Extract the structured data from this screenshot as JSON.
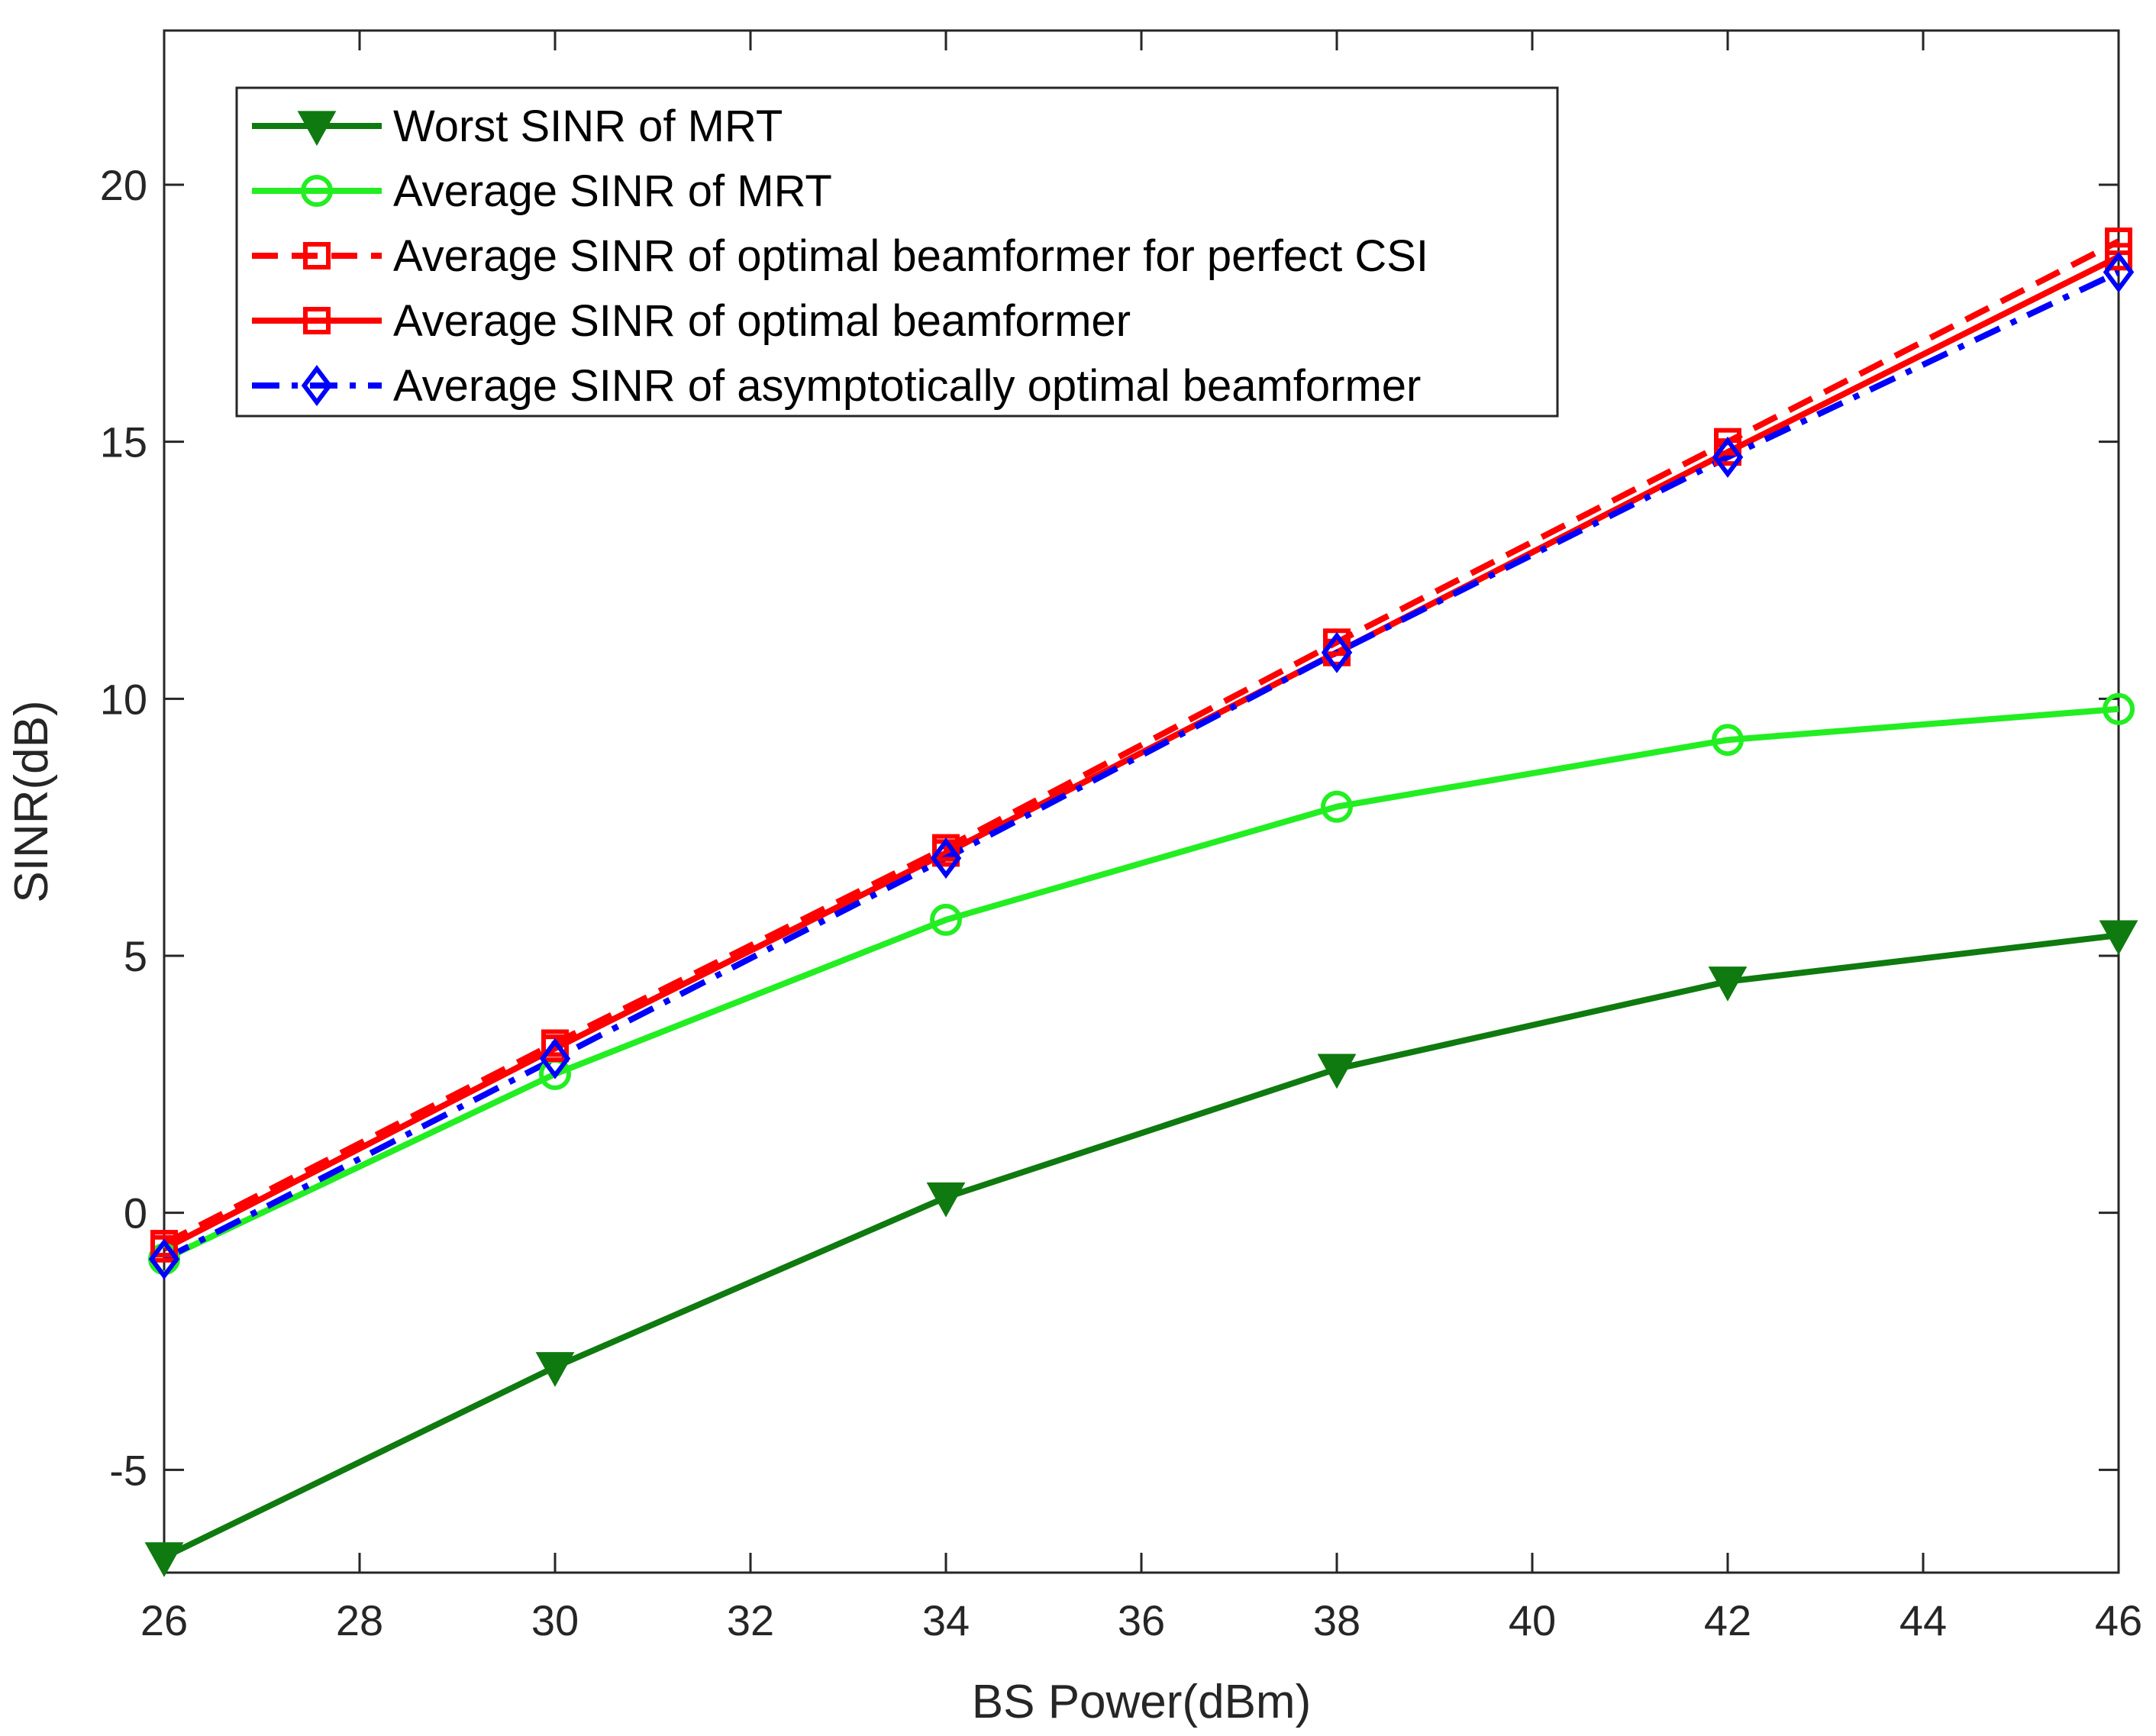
{
  "chart_data": {
    "type": "line",
    "title": "",
    "xlabel": "BS Power(dBm)",
    "ylabel": "SINR(dB)",
    "xlim": [
      26,
      46
    ],
    "ylim": [
      -7,
      23
    ],
    "xticks": [
      26,
      28,
      30,
      32,
      34,
      36,
      38,
      40,
      42,
      44,
      46
    ],
    "yticks": [
      -5,
      0,
      5,
      10,
      15,
      20
    ],
    "ytick_labels": [
      "-5",
      "0",
      "5",
      "10",
      "15",
      "20"
    ],
    "grid": false,
    "legend_position": "top-left",
    "series": [
      {
        "name": "Worst SINR of MRT",
        "color": "#0f7a0f",
        "style": "solid",
        "marker": "triangle-down",
        "x": [
          26,
          30,
          34,
          38,
          42,
          46
        ],
        "y": [
          -6.7,
          -3.0,
          0.3,
          2.8,
          4.5,
          5.4
        ]
      },
      {
        "name": "Average SINR of MRT",
        "color": "#22ee22",
        "style": "solid",
        "marker": "circle",
        "x": [
          26,
          30,
          34,
          38,
          42,
          46
        ],
        "y": [
          -0.9,
          2.7,
          5.7,
          7.9,
          9.2,
          9.8
        ]
      },
      {
        "name": "Average SINR of optimal beamformer for perfect CSI",
        "color": "#ff0000",
        "style": "dashed",
        "marker": "square",
        "x": [
          26,
          30,
          34,
          38,
          42,
          46
        ],
        "y": [
          -0.6,
          3.3,
          7.1,
          11.1,
          15.0,
          18.9
        ]
      },
      {
        "name": "Average SINR of optimal beamformer",
        "color": "#ff0000",
        "style": "solid",
        "marker": "square",
        "x": [
          26,
          30,
          34,
          38,
          42,
          46
        ],
        "y": [
          -0.7,
          3.2,
          7.0,
          10.9,
          14.8,
          18.6
        ]
      },
      {
        "name": "Average SINR of asymptotically optimal beamformer",
        "color": "#0000ff",
        "style": "dashdot",
        "marker": "diamond",
        "x": [
          26,
          30,
          34,
          38,
          42,
          46
        ],
        "y": [
          -0.9,
          3.0,
          6.9,
          10.9,
          14.7,
          18.3
        ]
      }
    ]
  }
}
